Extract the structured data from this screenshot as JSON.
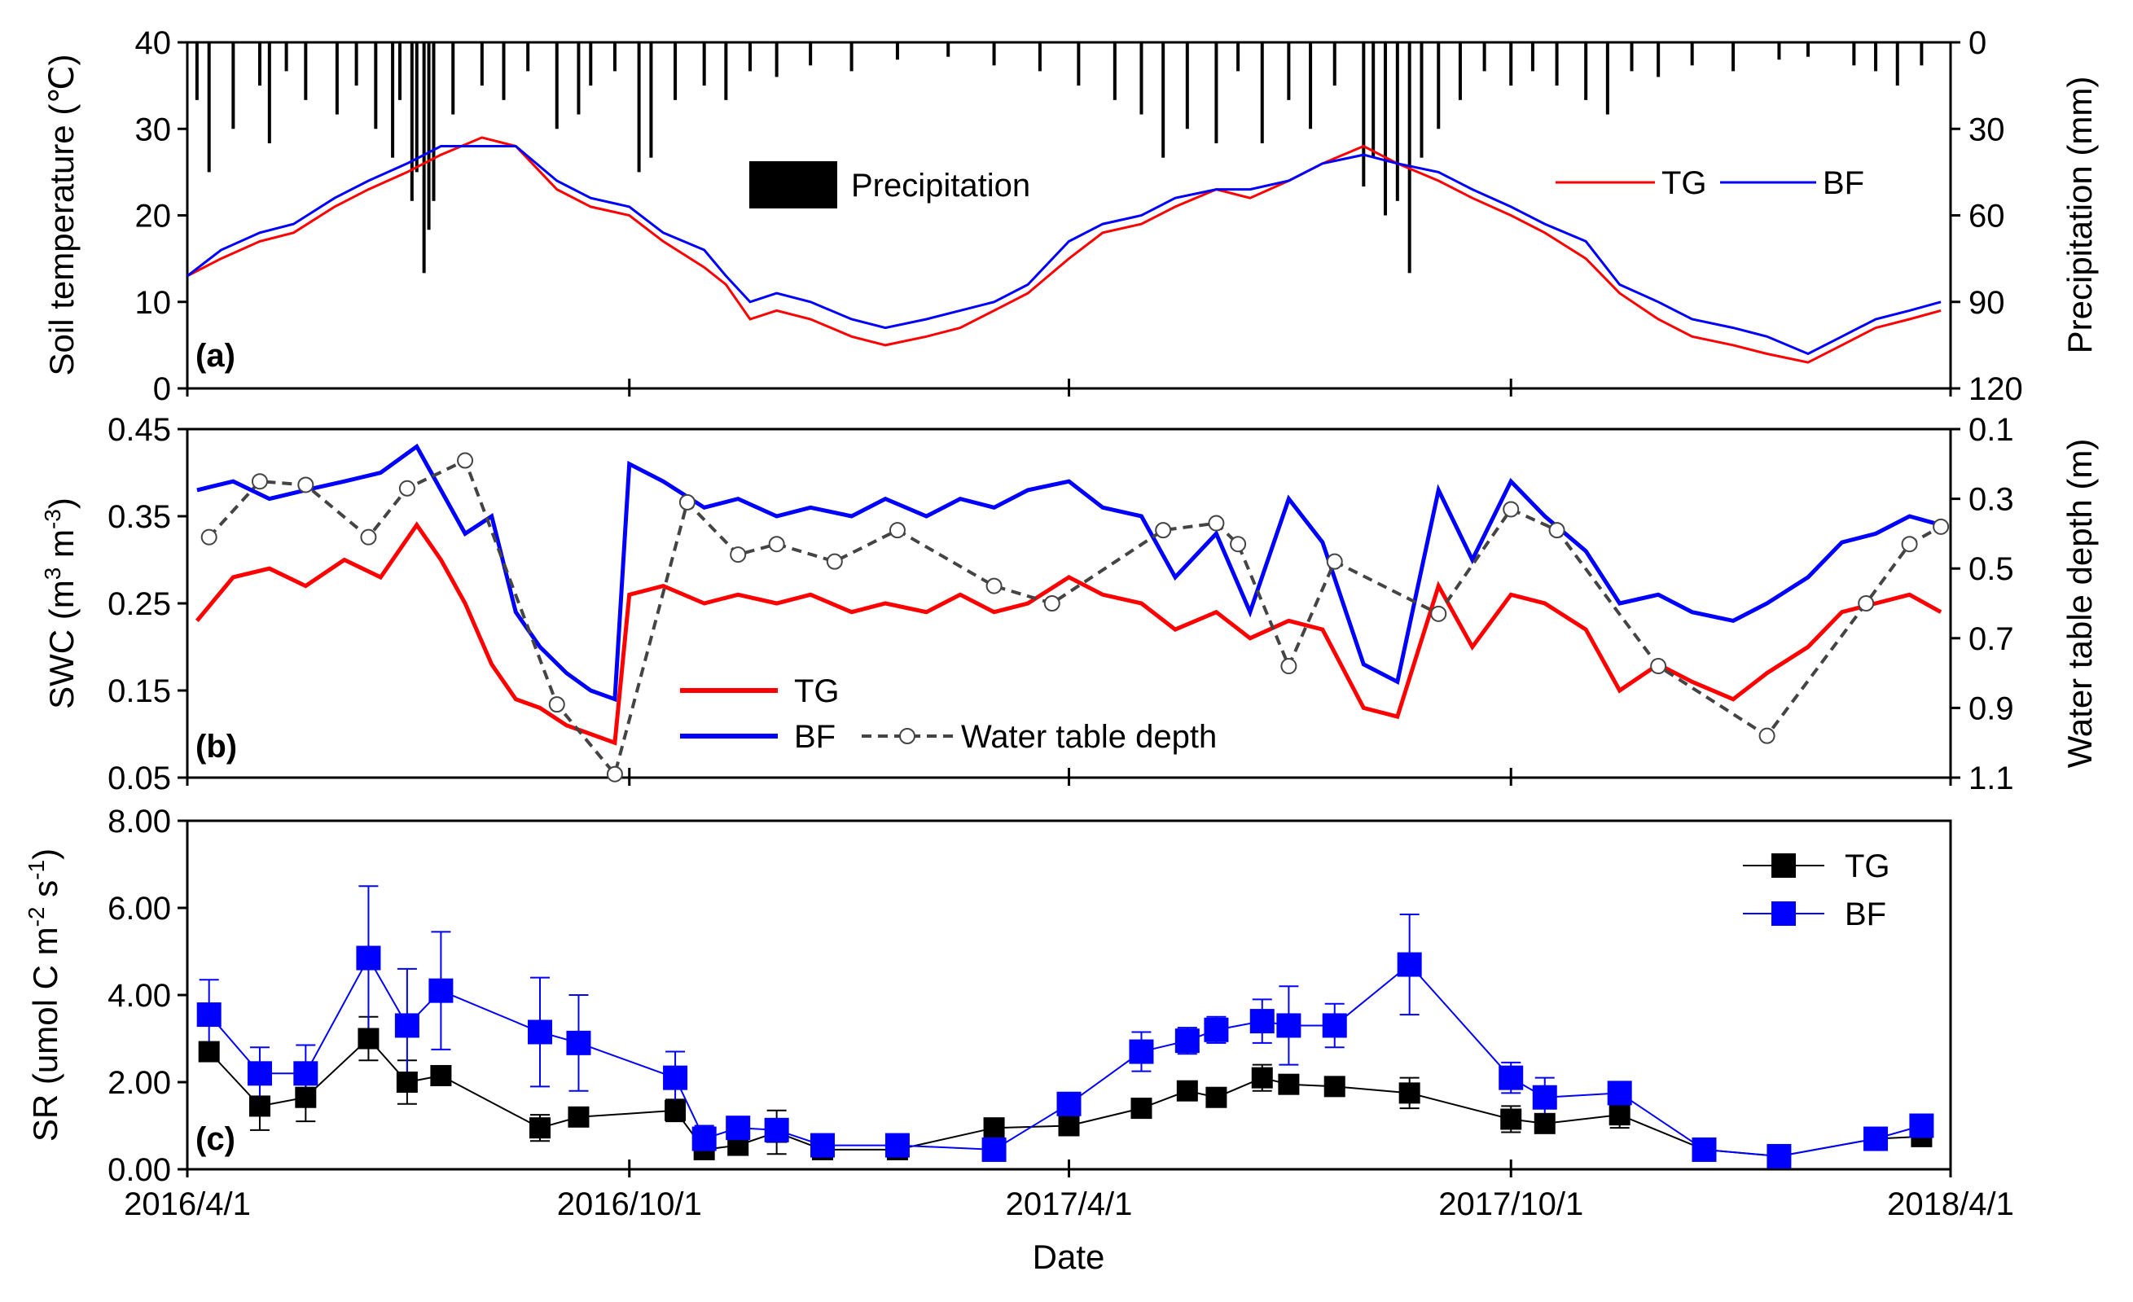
{
  "chart_data": [
    {
      "id": "a",
      "type": "line",
      "panel_label": "(a)",
      "ylabel": "Soil temperature (℃)",
      "y2label": "Precipitation (mm)",
      "ylim": [
        0,
        40
      ],
      "yticks": [
        "0",
        "10",
        "20",
        "30",
        "40"
      ],
      "y2lim": [
        0,
        120
      ],
      "y2ticks": [
        "0",
        "30",
        "60",
        "90",
        "120"
      ],
      "x_range": [
        "2016/4/1",
        "2018/4/1"
      ],
      "precipitation_label": "Precipitation",
      "series": [
        {
          "name": "TG",
          "color": "#ff0000",
          "dates": [
            "2016/4/1",
            "2016/4/15",
            "2016/5/1",
            "2016/5/15",
            "2016/6/1",
            "2016/6/15",
            "2016/7/1",
            "2016/7/15",
            "2016/8/1",
            "2016/8/15",
            "2016/9/1",
            "2016/9/15",
            "2016/10/1",
            "2016/10/15",
            "2016/11/1",
            "2016/11/10",
            "2016/11/20",
            "2016/12/1",
            "2016/12/15",
            "2017/1/1",
            "2017/1/15",
            "2017/2/1",
            "2017/2/15",
            "2017/3/1",
            "2017/3/15",
            "2017/4/1",
            "2017/4/15",
            "2017/5/1",
            "2017/5/15",
            "2017/6/1",
            "2017/6/15",
            "2017/7/1",
            "2017/7/15",
            "2017/8/1",
            "2017/8/15",
            "2017/9/1",
            "2017/9/15",
            "2017/10/1",
            "2017/10/15",
            "2017/11/1",
            "2017/11/15",
            "2017/12/1",
            "2017/12/15",
            "2018/1/1",
            "2018/1/15",
            "2018/2/1",
            "2018/2/15",
            "2018/3/1",
            "2018/3/15",
            "2018/3/28"
          ],
          "values": [
            13,
            15,
            17,
            18,
            21,
            23,
            25,
            27,
            29,
            28,
            23,
            21,
            20,
            17,
            14,
            12,
            8,
            9,
            8,
            6,
            5,
            6,
            7,
            9,
            11,
            15,
            18,
            19,
            21,
            23,
            22,
            24,
            26,
            28,
            26,
            24,
            22,
            20,
            18,
            15,
            11,
            8,
            6,
            5,
            4,
            3,
            5,
            7,
            8,
            9
          ]
        },
        {
          "name": "BF",
          "color": "#0000ff",
          "dates": [
            "2016/4/1",
            "2016/4/15",
            "2016/5/1",
            "2016/5/15",
            "2016/6/1",
            "2016/6/15",
            "2016/7/1",
            "2016/7/15",
            "2016/8/1",
            "2016/8/15",
            "2016/9/1",
            "2016/9/15",
            "2016/10/1",
            "2016/10/15",
            "2016/11/1",
            "2016/11/10",
            "2016/11/20",
            "2016/12/1",
            "2016/12/15",
            "2017/1/1",
            "2017/1/15",
            "2017/2/1",
            "2017/2/15",
            "2017/3/1",
            "2017/3/15",
            "2017/4/1",
            "2017/4/15",
            "2017/5/1",
            "2017/5/15",
            "2017/6/1",
            "2017/6/15",
            "2017/7/1",
            "2017/7/15",
            "2017/8/1",
            "2017/8/15",
            "2017/9/1",
            "2017/9/15",
            "2017/10/1",
            "2017/10/15",
            "2017/11/1",
            "2017/11/15",
            "2017/12/1",
            "2017/12/15",
            "2018/1/1",
            "2018/1/15",
            "2018/2/1",
            "2018/2/15",
            "2018/3/1",
            "2018/3/15",
            "2018/3/28"
          ],
          "values": [
            13,
            16,
            18,
            19,
            22,
            24,
            26,
            28,
            28,
            28,
            24,
            22,
            21,
            18,
            16,
            13,
            10,
            11,
            10,
            8,
            7,
            8,
            9,
            10,
            12,
            17,
            19,
            20,
            22,
            23,
            23,
            24,
            26,
            27,
            26,
            25,
            23,
            21,
            19,
            17,
            12,
            10,
            8,
            7,
            6,
            4,
            6,
            8,
            9,
            10
          ]
        }
      ],
      "precipitation": {
        "dates": [
          "2016/4/5",
          "2016/4/10",
          "2016/4/20",
          "2016/5/1",
          "2016/5/5",
          "2016/5/12",
          "2016/5/20",
          "2016/6/2",
          "2016/6/10",
          "2016/6/18",
          "2016/6/25",
          "2016/6/28",
          "2016/7/3",
          "2016/7/5",
          "2016/7/8",
          "2016/7/10",
          "2016/7/12",
          "2016/7/20",
          "2016/8/1",
          "2016/8/10",
          "2016/8/20",
          "2016/9/1",
          "2016/9/10",
          "2016/9/15",
          "2016/9/25",
          "2016/10/5",
          "2016/10/10",
          "2016/10/20",
          "2016/11/1",
          "2016/11/10",
          "2016/11/20",
          "2016/12/1",
          "2016/12/15",
          "2017/1/1",
          "2017/1/20",
          "2017/2/10",
          "2017/3/1",
          "2017/3/20",
          "2017/4/5",
          "2017/4/20",
          "2017/5/1",
          "2017/5/10",
          "2017/5/20",
          "2017/6/1",
          "2017/6/10",
          "2017/6/20",
          "2017/7/1",
          "2017/7/10",
          "2017/7/20",
          "2017/8/1",
          "2017/8/5",
          "2017/8/10",
          "2017/8/15",
          "2017/8/20",
          "2017/8/25",
          "2017/9/1",
          "2017/9/10",
          "2017/9/20",
          "2017/10/1",
          "2017/10/10",
          "2017/10/20",
          "2017/11/1",
          "2017/11/10",
          "2017/11/20",
          "2017/12/1",
          "2017/12/15",
          "2018/1/1",
          "2018/1/20",
          "2018/2/1",
          "2018/2/20",
          "2018/3/1",
          "2018/3/10",
          "2018/3/20"
        ],
        "values": [
          20,
          45,
          30,
          15,
          35,
          10,
          20,
          25,
          15,
          30,
          40,
          20,
          55,
          45,
          80,
          65,
          55,
          25,
          15,
          20,
          10,
          30,
          25,
          15,
          10,
          45,
          40,
          20,
          15,
          20,
          10,
          12,
          8,
          10,
          6,
          5,
          8,
          10,
          15,
          20,
          25,
          40,
          30,
          35,
          10,
          35,
          20,
          30,
          15,
          50,
          40,
          60,
          55,
          80,
          40,
          30,
          20,
          10,
          15,
          10,
          15,
          20,
          25,
          10,
          12,
          8,
          10,
          6,
          5,
          8,
          10,
          15,
          8
        ]
      },
      "legend": [
        "TG",
        "BF"
      ]
    },
    {
      "id": "b",
      "type": "line",
      "panel_label": "(b)",
      "ylabel": "SWC (m³ m⁻³)",
      "ylabel_main": "SWC (m",
      "ylabel_mid": " m",
      "ylabel_end": ")",
      "ylabel_sup1": "3",
      "ylabel_sup2": "-3",
      "y2label": "Water table depth (m)",
      "ylim": [
        0.05,
        0.45
      ],
      "yticks": [
        "0.05",
        "0.15",
        "0.25",
        "0.35",
        "0.45"
      ],
      "y2lim": [
        0.1,
        1.1
      ],
      "y2ticks": [
        "0.1",
        "0.3",
        "0.5",
        "0.7",
        "0.9",
        "1.1"
      ],
      "series": [
        {
          "name": "TG",
          "color": "#ff0000",
          "dates": [
            "2016/4/5",
            "2016/4/20",
            "2016/5/5",
            "2016/5/20",
            "2016/6/5",
            "2016/6/20",
            "2016/7/5",
            "2016/7/15",
            "2016/7/25",
            "2016/8/5",
            "2016/8/15",
            "2016/8/25",
            "2016/9/5",
            "2016/9/15",
            "2016/9/25",
            "2016/10/1",
            "2016/10/15",
            "2016/11/1",
            "2016/11/15",
            "2016/12/1",
            "2016/12/15",
            "2017/1/1",
            "2017/1/15",
            "2017/2/1",
            "2017/2/15",
            "2017/3/1",
            "2017/3/15",
            "2017/4/1",
            "2017/4/15",
            "2017/5/1",
            "2017/5/15",
            "2017/6/1",
            "2017/6/15",
            "2017/7/1",
            "2017/7/15",
            "2017/8/1",
            "2017/8/15",
            "2017/9/1",
            "2017/9/15",
            "2017/10/1",
            "2017/10/15",
            "2017/11/1",
            "2017/11/15",
            "2017/12/1",
            "2017/12/15",
            "2018/1/1",
            "2018/1/15",
            "2018/2/1",
            "2018/2/15",
            "2018/3/1",
            "2018/3/15",
            "2018/3/28"
          ],
          "values": [
            0.23,
            0.28,
            0.29,
            0.27,
            0.3,
            0.28,
            0.34,
            0.3,
            0.25,
            0.18,
            0.14,
            0.13,
            0.11,
            0.1,
            0.09,
            0.26,
            0.27,
            0.25,
            0.26,
            0.25,
            0.26,
            0.24,
            0.25,
            0.24,
            0.26,
            0.24,
            0.25,
            0.28,
            0.26,
            0.25,
            0.22,
            0.24,
            0.21,
            0.23,
            0.22,
            0.13,
            0.12,
            0.27,
            0.2,
            0.26,
            0.25,
            0.22,
            0.15,
            0.18,
            0.16,
            0.14,
            0.17,
            0.2,
            0.24,
            0.25,
            0.26,
            0.24
          ]
        },
        {
          "name": "BF",
          "color": "#0000ff",
          "dates": [
            "2016/4/5",
            "2016/4/20",
            "2016/5/5",
            "2016/5/20",
            "2016/6/5",
            "2016/6/20",
            "2016/7/5",
            "2016/7/15",
            "2016/7/25",
            "2016/8/5",
            "2016/8/15",
            "2016/8/25",
            "2016/9/5",
            "2016/9/15",
            "2016/9/25",
            "2016/10/1",
            "2016/10/15",
            "2016/11/1",
            "2016/11/15",
            "2016/12/1",
            "2016/12/15",
            "2017/1/1",
            "2017/1/15",
            "2017/2/1",
            "2017/2/15",
            "2017/3/1",
            "2017/3/15",
            "2017/4/1",
            "2017/4/15",
            "2017/5/1",
            "2017/5/15",
            "2017/6/1",
            "2017/6/15",
            "2017/7/1",
            "2017/7/15",
            "2017/8/1",
            "2017/8/15",
            "2017/9/1",
            "2017/9/15",
            "2017/10/1",
            "2017/10/15",
            "2017/11/1",
            "2017/11/15",
            "2017/12/1",
            "2017/12/15",
            "2018/1/1",
            "2018/1/15",
            "2018/2/1",
            "2018/2/15",
            "2018/3/1",
            "2018/3/15",
            "2018/3/28"
          ],
          "values": [
            0.38,
            0.39,
            0.37,
            0.38,
            0.39,
            0.4,
            0.43,
            0.38,
            0.33,
            0.35,
            0.24,
            0.2,
            0.17,
            0.15,
            0.14,
            0.41,
            0.39,
            0.36,
            0.37,
            0.35,
            0.36,
            0.35,
            0.37,
            0.35,
            0.37,
            0.36,
            0.38,
            0.39,
            0.36,
            0.35,
            0.28,
            0.33,
            0.24,
            0.37,
            0.32,
            0.18,
            0.16,
            0.38,
            0.3,
            0.39,
            0.35,
            0.31,
            0.25,
            0.26,
            0.24,
            0.23,
            0.25,
            0.28,
            0.32,
            0.33,
            0.35,
            0.34
          ]
        },
        {
          "name": "Water table depth",
          "color": "#444444",
          "dates": [
            "2016/4/10",
            "2016/5/1",
            "2016/5/20",
            "2016/6/15",
            "2016/7/1",
            "2016/7/25",
            "2016/9/1",
            "2016/9/25",
            "2016/10/25",
            "2016/11/15",
            "2016/12/1",
            "2016/12/25",
            "2017/1/20",
            "2017/3/1",
            "2017/3/25",
            "2017/5/10",
            "2017/6/1",
            "2017/6/10",
            "2017/7/1",
            "2017/7/20",
            "2017/9/1",
            "2017/10/1",
            "2017/10/20",
            "2017/12/1",
            "2018/1/15",
            "2018/2/25",
            "2018/3/15",
            "2018/3/28"
          ],
          "values": [
            0.41,
            0.25,
            0.26,
            0.41,
            0.27,
            0.19,
            0.89,
            1.09,
            0.31,
            0.46,
            0.43,
            0.48,
            0.39,
            0.55,
            0.6,
            0.39,
            0.37,
            0.43,
            0.78,
            0.48,
            0.63,
            0.33,
            0.39,
            0.78,
            0.98,
            0.6,
            0.43,
            0.38
          ]
        }
      ],
      "legend": [
        "TG",
        "BF",
        "Water table depth"
      ]
    },
    {
      "id": "c",
      "type": "scatter",
      "panel_label": "(c)",
      "ylabel": "SR (umol C m⁻² s⁻¹)",
      "ylabel_main": "SR (umol C m",
      "ylabel_mid": " s",
      "ylabel_end": ")",
      "ylabel_sup1": "-2",
      "ylabel_sup2": "-1",
      "xlabel": "Date",
      "ylim": [
        0,
        8
      ],
      "yticks": [
        "0.00",
        "2.00",
        "4.00",
        "6.00",
        "8.00"
      ],
      "xticks": [
        "2016/4/1",
        "2016/10/1",
        "2017/4/1",
        "2017/10/1",
        "2018/4/1"
      ],
      "series": [
        {
          "name": "TG",
          "color": "#000000",
          "dates": [
            "2016/4/10",
            "2016/5/1",
            "2016/5/20",
            "2016/6/15",
            "2016/7/1",
            "2016/7/15",
            "2016/8/25",
            "2016/9/10",
            "2016/10/20",
            "2016/11/1",
            "2016/11/15",
            "2016/12/1",
            "2016/12/20",
            "2017/1/20",
            "2017/3/1",
            "2017/4/1",
            "2017/5/1",
            "2017/5/20",
            "2017/6/1",
            "2017/6/20",
            "2017/7/1",
            "2017/7/20",
            "2017/8/20",
            "2017/10/1",
            "2017/10/15",
            "2017/11/15",
            "2017/12/20",
            "2018/1/20",
            "2018/3/1",
            "2018/3/20"
          ],
          "values": [
            2.7,
            1.45,
            1.65,
            3.0,
            2.0,
            2.15,
            0.95,
            1.2,
            1.35,
            0.45,
            0.55,
            0.85,
            0.45,
            0.45,
            0.95,
            1.0,
            1.4,
            1.8,
            1.65,
            2.1,
            1.95,
            1.9,
            1.75,
            1.15,
            1.05,
            1.25,
            0.45,
            0.3,
            0.7,
            0.75
          ],
          "errors": [
            0.2,
            0.55,
            0.55,
            0.5,
            0.5,
            0.15,
            0.3,
            0.15,
            0.25,
            0.15,
            0.15,
            0.5,
            0.1,
            0.1,
            0.1,
            0.1,
            0.2,
            0.15,
            0.15,
            0.3,
            0.2,
            0.15,
            0.35,
            0.3,
            0.2,
            0.3,
            0.1,
            0.1,
            0.2,
            0.2
          ]
        },
        {
          "name": "BF",
          "color": "#0000ff",
          "dates": [
            "2016/4/10",
            "2016/5/1",
            "2016/5/20",
            "2016/6/15",
            "2016/7/1",
            "2016/7/15",
            "2016/8/25",
            "2016/9/10",
            "2016/10/20",
            "2016/11/1",
            "2016/11/15",
            "2016/12/1",
            "2016/12/20",
            "2017/1/20",
            "2017/3/1",
            "2017/4/1",
            "2017/5/1",
            "2017/5/20",
            "2017/6/1",
            "2017/6/20",
            "2017/7/1",
            "2017/7/20",
            "2017/8/20",
            "2017/10/1",
            "2017/10/15",
            "2017/11/15",
            "2017/12/20",
            "2018/1/20",
            "2018/3/1",
            "2018/3/20"
          ],
          "values": [
            3.55,
            2.2,
            2.2,
            4.85,
            3.3,
            4.1,
            3.15,
            2.9,
            2.1,
            0.7,
            0.95,
            0.9,
            0.55,
            0.55,
            0.45,
            1.5,
            2.7,
            2.95,
            3.2,
            3.4,
            3.3,
            3.3,
            4.7,
            2.1,
            1.65,
            1.75,
            0.45,
            0.3,
            0.7,
            1.0
          ],
          "errors": [
            0.8,
            0.6,
            0.65,
            1.65,
            1.3,
            1.35,
            1.25,
            1.1,
            0.6,
            0.3,
            0.2,
            0.25,
            0.15,
            0.15,
            0.15,
            0.15,
            0.45,
            0.3,
            0.3,
            0.5,
            0.9,
            0.5,
            1.15,
            0.35,
            0.45,
            0.2,
            0.1,
            0.1,
            0.15,
            0.2
          ]
        }
      ],
      "legend": [
        "TG",
        "BF"
      ]
    }
  ]
}
